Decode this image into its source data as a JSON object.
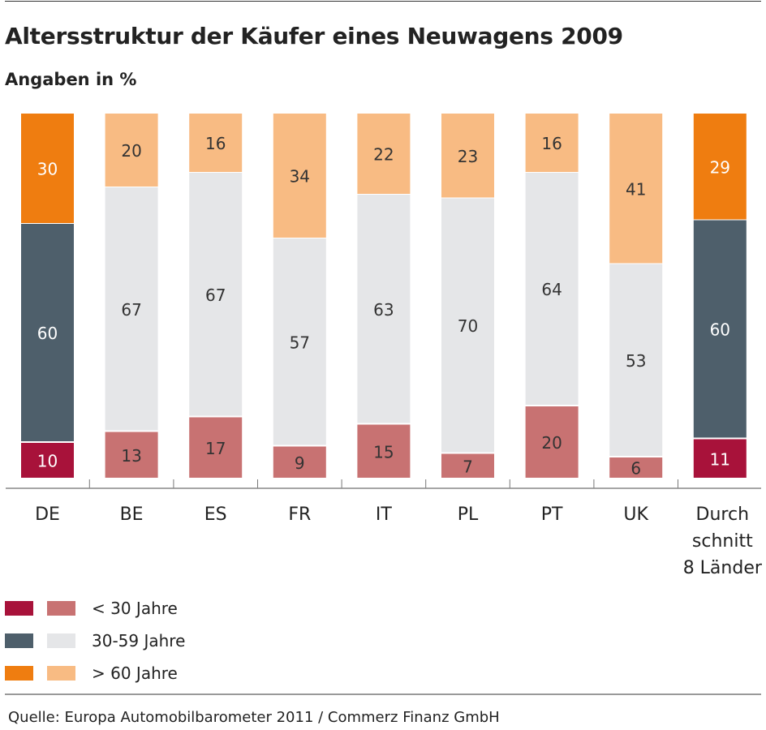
{
  "chart_data": {
    "type": "stacked-bar",
    "title": "Altersstruktur der Käufer eines Neuwagens 2009",
    "subtitle": "Angaben in %",
    "categories": [
      "DE",
      "BE",
      "ES",
      "FR",
      "IT",
      "PL",
      "PT",
      "UK",
      "Durch schnitt 8 Länder"
    ],
    "category_lines": [
      [
        "DE"
      ],
      [
        "BE"
      ],
      [
        "ES"
      ],
      [
        "FR"
      ],
      [
        "IT"
      ],
      [
        "PL"
      ],
      [
        "PT"
      ],
      [
        "UK"
      ],
      [
        "Durch",
        "schnitt",
        "8 Länder"
      ]
    ],
    "highlighted": [
      true,
      false,
      false,
      false,
      false,
      false,
      false,
      false,
      true
    ],
    "series": [
      {
        "name": "< 30 Jahre",
        "values": [
          10,
          13,
          17,
          9,
          15,
          7,
          20,
          6,
          11
        ],
        "color_highlight": "#a8123a",
        "color": "#c87272"
      },
      {
        "name": "30-59 Jahre",
        "values": [
          60,
          67,
          67,
          57,
          63,
          70,
          64,
          53,
          60
        ],
        "color_highlight": "#4e5f6b",
        "color": "#e5e6e8"
      },
      {
        "name": "> 60 Jahre",
        "values": [
          30,
          20,
          16,
          34,
          22,
          23,
          16,
          41,
          29
        ],
        "color_highlight": "#ef7d10",
        "color": "#f8bb83"
      }
    ],
    "ylim": [
      0,
      100
    ],
    "grid": false,
    "legend_position": "bottom-left"
  },
  "source": "Quelle: Europa Automobilbarometer 2011 / Commerz Finanz GmbH"
}
